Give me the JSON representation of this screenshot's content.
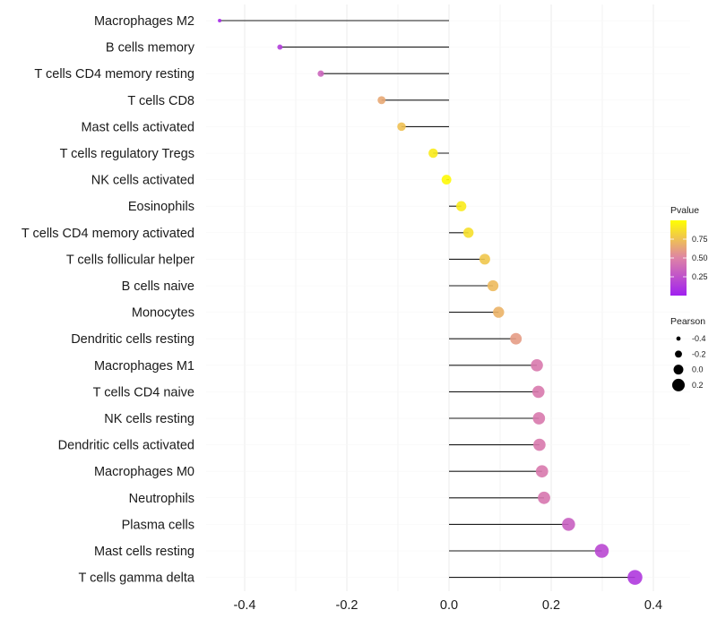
{
  "chart_data": {
    "type": "scatter",
    "subtype": "lollipop",
    "title": "",
    "xlabel": "",
    "ylabel": "",
    "xlim": [
      -0.47,
      0.43
    ],
    "xticks": [
      -0.4,
      -0.2,
      0.0,
      0.2,
      0.4
    ],
    "xtick_labels": [
      "-0.4",
      "-0.2",
      "0.0",
      "0.2",
      "0.4"
    ],
    "grid": true,
    "categories": [
      "Macrophages M2",
      "B cells memory",
      "T cells CD4 memory resting",
      "T cells CD8",
      "Mast cells activated",
      "T cells regulatory  Tregs ",
      "NK cells activated",
      "Eosinophils",
      "T cells CD4 memory activated",
      "T cells follicular helper",
      "B cells naive",
      "Monocytes",
      "Dendritic cells resting",
      "Macrophages M1",
      "T cells CD4 naive",
      "NK cells resting",
      "Dendritic cells activated",
      "Macrophages M0",
      "Neutrophils",
      "Plasma cells",
      "Mast cells resting",
      "T cells gamma delta"
    ],
    "values": [
      -0.449,
      -0.331,
      -0.251,
      -0.132,
      -0.093,
      -0.031,
      -0.005,
      0.024,
      0.038,
      0.07,
      0.086,
      0.097,
      0.131,
      0.172,
      0.175,
      0.176,
      0.177,
      0.182,
      0.186,
      0.234,
      0.299,
      0.364
    ],
    "pvalues": [
      0.05,
      0.15,
      0.35,
      0.65,
      0.75,
      0.92,
      0.98,
      0.92,
      0.87,
      0.77,
      0.72,
      0.69,
      0.6,
      0.45,
      0.45,
      0.45,
      0.45,
      0.45,
      0.44,
      0.32,
      0.2,
      0.12
    ],
    "legend": {
      "position": "right",
      "color": {
        "title": "Pvalue",
        "ticks": [
          0.25,
          0.5,
          0.75
        ],
        "tick_labels": [
          "0.25",
          "0.50",
          "0.75"
        ],
        "range": [
          0.0,
          1.0
        ],
        "low_color": "#A020F0",
        "mid_color": "#DE83A6",
        "high_color": "#FFFF00"
      },
      "size": {
        "title": "Pearson",
        "values": [
          -0.4,
          -0.2,
          0.0,
          0.2
        ],
        "labels": [
          "-0.4",
          "-0.2",
          "0.0",
          "0.2"
        ]
      }
    }
  }
}
